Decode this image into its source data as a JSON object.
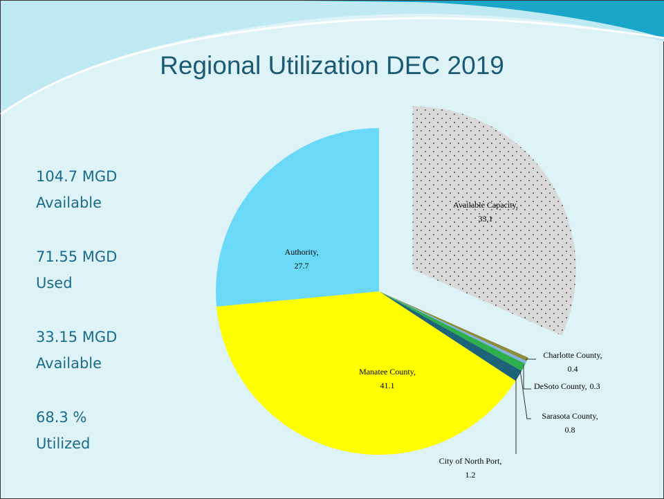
{
  "chart_data": {
    "type": "pie",
    "title": "Regional Utilization DEC 2019",
    "categories": [
      "Available Capacity",
      "Charlotte County",
      "DeSoto County",
      "Sarasota County",
      "City of North Port",
      "Manatee County",
      "Authority"
    ],
    "values": [
      33.1,
      0.4,
      0.3,
      0.8,
      1.2,
      41.1,
      27.7
    ],
    "colors": [
      "#d9d9d9",
      "#8c8c3c",
      "#7fb2e0",
      "#2fae4e",
      "#1d6478",
      "#ffff00",
      "#6ad9f7"
    ],
    "exploded": [
      0
    ],
    "label_separator": ",",
    "stats": [
      {
        "value": "104.7 MGD",
        "label": "Available"
      },
      {
        "value": "71.55 MGD",
        "label": "Used"
      },
      {
        "value": "33.15 MGD",
        "label": "Available"
      },
      {
        "value": "68.3 %",
        "label": "Utilized"
      }
    ]
  }
}
